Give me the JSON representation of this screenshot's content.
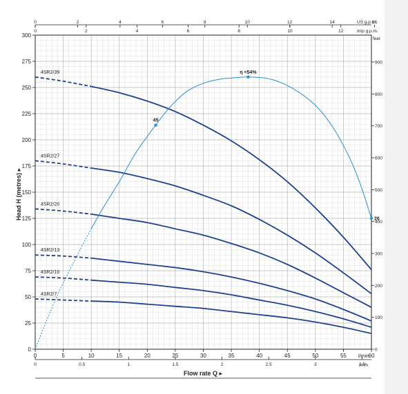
{
  "chart_data": {
    "type": "line",
    "xlabel": "Flow rate Q",
    "ylabel": "Head H (metres)",
    "x_unit": "l/min",
    "xlim": [
      0,
      60
    ],
    "ylim": [
      0,
      300
    ],
    "x_ticks": [
      0,
      5,
      10,
      15,
      20,
      25,
      30,
      35,
      40,
      45,
      50,
      55,
      60
    ],
    "y_ticks": [
      0,
      25,
      50,
      75,
      100,
      125,
      150,
      175,
      200,
      225,
      250,
      275,
      300
    ],
    "top_axis_us": {
      "unit": "US g.p.m.",
      "ticks": [
        "0",
        "2",
        "4",
        "6",
        "8",
        "10",
        "12",
        "14",
        "16"
      ],
      "values": [
        0,
        2,
        4,
        6,
        8,
        10,
        12,
        14,
        16
      ]
    },
    "top_axis_imp": {
      "unit": "Imp g.p.m.",
      "ticks": [
        "0",
        "2",
        "4",
        "6",
        "8",
        "10",
        "12"
      ],
      "values": [
        0,
        2,
        4,
        6,
        8,
        10,
        12
      ]
    },
    "bottom_axis_m3h": {
      "unit": "m³/h",
      "ticks": [
        "0",
        "0.5",
        "1",
        "1.5",
        "2",
        "2.5",
        "3",
        "3.5"
      ],
      "values": [
        0,
        0.5,
        1,
        1.5,
        2,
        2.5,
        3,
        3.5
      ]
    },
    "right_axis_feet": {
      "unit": "feet",
      "ticks": [
        "0",
        "100",
        "200",
        "300",
        "400",
        "500",
        "600",
        "700",
        "800",
        "900"
      ],
      "values": [
        0,
        100,
        200,
        300,
        400,
        500,
        600,
        700,
        800,
        900
      ]
    },
    "series": [
      {
        "name": "4SR2/39",
        "dashed_until": 10,
        "x": [
          0,
          5,
          10,
          15,
          20,
          25,
          30,
          35,
          40,
          45,
          50,
          55,
          60
        ],
        "y": [
          260,
          256,
          251,
          245,
          237,
          227,
          214,
          199,
          181,
          160,
          135,
          107,
          76
        ]
      },
      {
        "name": "4SR2/27",
        "dashed_until": 10,
        "x": [
          0,
          5,
          10,
          15,
          20,
          25,
          30,
          35,
          40,
          45,
          50,
          55,
          60
        ],
        "y": [
          180,
          177,
          173,
          169,
          163,
          156,
          147,
          137,
          124,
          109,
          92,
          73,
          53
        ]
      },
      {
        "name": "4SR2/20",
        "dashed_until": 10,
        "x": [
          0,
          5,
          10,
          15,
          20,
          25,
          30,
          35,
          40,
          45,
          50,
          55,
          60
        ],
        "y": [
          134,
          132,
          129,
          125,
          121,
          115,
          109,
          101,
          92,
          81,
          68,
          54,
          40
        ]
      },
      {
        "name": "4SR2/13",
        "dashed_until": 10,
        "x": [
          0,
          5,
          10,
          15,
          20,
          25,
          30,
          35,
          40,
          45,
          50,
          55,
          60
        ],
        "y": [
          90,
          89,
          87,
          84,
          81,
          78,
          74,
          69,
          63,
          56,
          48,
          38,
          27
        ]
      },
      {
        "name": "4SR2/10",
        "dashed_until": 10,
        "x": [
          0,
          5,
          10,
          15,
          20,
          25,
          30,
          35,
          40,
          45,
          50,
          55,
          60
        ],
        "y": [
          69,
          68,
          66,
          64,
          62,
          59,
          56,
          52,
          47,
          42,
          36,
          29,
          21
        ]
      },
      {
        "name": "4SR2/7",
        "dashed_until": 10,
        "x": [
          0,
          5,
          10,
          15,
          20,
          25,
          30,
          35,
          40,
          45,
          50,
          55,
          60
        ],
        "y": [
          48,
          47,
          46,
          45,
          43,
          41,
          39,
          36,
          33,
          30,
          26,
          21,
          15
        ]
      }
    ],
    "efficiency_curve": {
      "x": [
        0,
        2,
        4,
        6,
        8,
        10,
        12,
        15,
        18,
        21.5,
        24,
        27,
        30,
        33,
        35,
        38,
        42,
        46,
        50,
        53,
        56,
        58,
        60
      ],
      "y": [
        0,
        27,
        52,
        74,
        95,
        115,
        134,
        160,
        188,
        214,
        231,
        246,
        254,
        258,
        259,
        260,
        258,
        249,
        233,
        213,
        184,
        158,
        125
      ],
      "dashed_until": 10,
      "labels": [
        {
          "text": "45",
          "x": 21.5,
          "y": 214
        },
        {
          "text": "η =54%",
          "x": 38,
          "y": 260
        },
        {
          "text": "26",
          "x": 60,
          "y": 125
        }
      ]
    },
    "colors": {
      "curve": "#1f3f8f",
      "efficiency": "#2b8fd0",
      "grid": "#c9c9c9",
      "axis": "#222222"
    },
    "grid": true
  }
}
